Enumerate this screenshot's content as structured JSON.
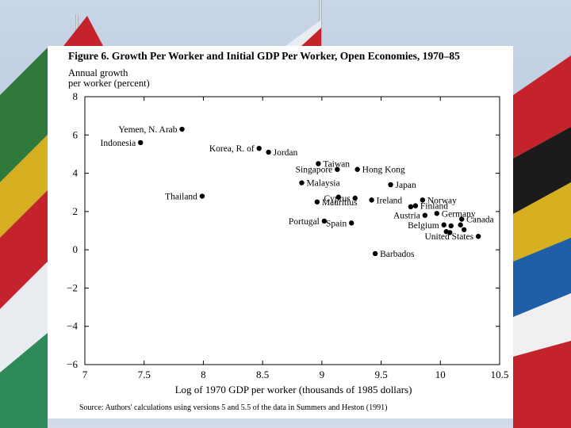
{
  "chart_data": {
    "type": "scatter",
    "title": "Figure 6.  Growth Per Worker and Initial GDP Per Worker, Open Economies, 1970–85",
    "ylabel_line1": "Annual growth",
    "ylabel_line2": "per worker (percent)",
    "xlabel": "Log of 1970 GDP per worker (thousands of 1985 dollars)",
    "source": "Source: Authors' calculations using versions 5 and 5.5 of the data in Summers and Heston (1991)",
    "xlim": [
      7,
      10.5
    ],
    "ylim": [
      -6,
      8
    ],
    "x_ticks": [
      7,
      7.5,
      8,
      8.5,
      9,
      9.5,
      10,
      10.5
    ],
    "y_ticks": [
      8,
      6,
      4,
      2,
      0,
      -2,
      -4,
      -6
    ],
    "x_tick_labels": [
      "7",
      "7.5",
      "8",
      "8.5",
      "9",
      "9.5",
      "10",
      "10.5"
    ],
    "y_tick_labels": [
      "8",
      "6",
      "4",
      "2",
      "0",
      "−2",
      "−4",
      "−6"
    ],
    "points": [
      {
        "label": "Yemen, N. Arab",
        "x": 7.82,
        "y": 6.3,
        "anchor": "end"
      },
      {
        "label": "Indonesia",
        "x": 7.47,
        "y": 5.6,
        "anchor": "end"
      },
      {
        "label": "Korea, R. of",
        "x": 8.47,
        "y": 5.3,
        "anchor": "end"
      },
      {
        "label": "Jordan",
        "x": 8.55,
        "y": 5.1,
        "anchor": "start"
      },
      {
        "label": "Taiwan",
        "x": 8.97,
        "y": 4.5,
        "anchor": "start"
      },
      {
        "label": "Singapore",
        "x": 9.13,
        "y": 4.2,
        "anchor": "end"
      },
      {
        "label": "Hong Kong",
        "x": 9.3,
        "y": 4.2,
        "anchor": "start"
      },
      {
        "label": "Malaysia",
        "x": 8.83,
        "y": 3.5,
        "anchor": "start"
      },
      {
        "label": "Japan",
        "x": 9.58,
        "y": 3.4,
        "anchor": "start"
      },
      {
        "label": "Thailand",
        "x": 7.99,
        "y": 2.8,
        "anchor": "end"
      },
      {
        "label": "Cyprus",
        "x": 9.28,
        "y": 2.7,
        "anchor": "end"
      },
      {
        "label": "Mauritius",
        "x": 8.96,
        "y": 2.5,
        "anchor": "start"
      },
      {
        "label": "Ireland",
        "x": 9.42,
        "y": 2.6,
        "anchor": "start"
      },
      {
        "label": "Norway",
        "x": 9.85,
        "y": 2.6,
        "anchor": "start"
      },
      {
        "label": "Finland",
        "x": 9.79,
        "y": 2.3,
        "anchor": "start"
      },
      {
        "label": "",
        "x": 9.75,
        "y": 2.25,
        "anchor": "start"
      },
      {
        "label": "",
        "x": 9.14,
        "y": 2.75,
        "anchor": "start"
      },
      {
        "label": "Germany",
        "x": 9.97,
        "y": 1.9,
        "anchor": "start"
      },
      {
        "label": "Austria",
        "x": 9.87,
        "y": 1.8,
        "anchor": "end"
      },
      {
        "label": "Canada",
        "x": 10.18,
        "y": 1.6,
        "anchor": "start"
      },
      {
        "label": "Portugal",
        "x": 9.02,
        "y": 1.5,
        "anchor": "end"
      },
      {
        "label": "Spain",
        "x": 9.25,
        "y": 1.4,
        "anchor": "end"
      },
      {
        "label": "Belgium",
        "x": 10.03,
        "y": 1.3,
        "anchor": "end"
      },
      {
        "label": "",
        "x": 10.09,
        "y": 1.25,
        "anchor": "start"
      },
      {
        "label": "",
        "x": 10.17,
        "y": 1.3,
        "anchor": "start"
      },
      {
        "label": "",
        "x": 10.2,
        "y": 1.05,
        "anchor": "start"
      },
      {
        "label": "",
        "x": 10.05,
        "y": 0.95,
        "anchor": "start"
      },
      {
        "label": "United States",
        "x": 10.32,
        "y": 0.7,
        "anchor": "end"
      },
      {
        "label": "",
        "x": 10.08,
        "y": 0.9,
        "anchor": "start"
      },
      {
        "label": "Barbados",
        "x": 9.45,
        "y": -0.2,
        "anchor": "start"
      }
    ]
  }
}
